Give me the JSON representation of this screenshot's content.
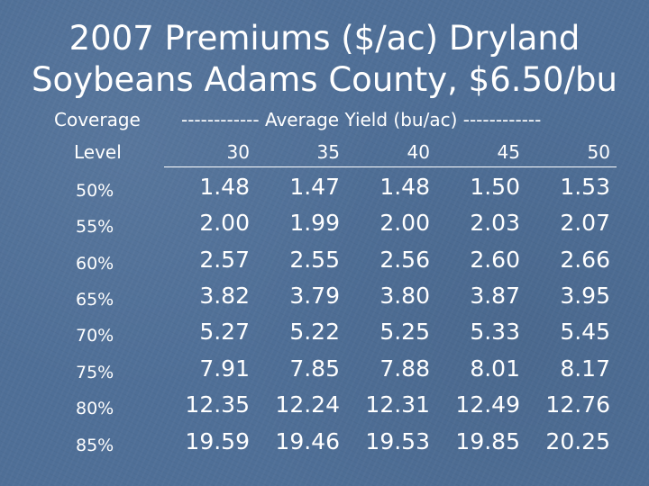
{
  "slide": {
    "title_line1": "2007 Premiums ($/ac) Dryland",
    "title_line2": "Soybeans Adams County, $6.50/bu"
  },
  "table": {
    "coverage_header": "Coverage",
    "level_header": "Level",
    "avg_yield_header": "------------ Average Yield (bu/ac) ------------",
    "yields": [
      "30",
      "35",
      "40",
      "45",
      "50"
    ],
    "rows": [
      {
        "level": "50%",
        "values": [
          "1.48",
          "1.47",
          "1.48",
          "1.50",
          "1.53"
        ]
      },
      {
        "level": "55%",
        "values": [
          "2.00",
          "1.99",
          "2.00",
          "2.03",
          "2.07"
        ]
      },
      {
        "level": "60%",
        "values": [
          "2.57",
          "2.55",
          "2.56",
          "2.60",
          "2.66"
        ]
      },
      {
        "level": "65%",
        "values": [
          "3.82",
          "3.79",
          "3.80",
          "3.87",
          "3.95"
        ]
      },
      {
        "level": "70%",
        "values": [
          "5.27",
          "5.22",
          "5.25",
          "5.33",
          "5.45"
        ]
      },
      {
        "level": "75%",
        "values": [
          "7.91",
          "7.85",
          "7.88",
          "8.01",
          "8.17"
        ]
      },
      {
        "level": "80%",
        "values": [
          "12.35",
          "12.24",
          "12.31",
          "12.49",
          "12.76"
        ]
      },
      {
        "level": "85%",
        "values": [
          "19.59",
          "19.46",
          "19.53",
          "19.85",
          "20.25"
        ]
      }
    ]
  }
}
